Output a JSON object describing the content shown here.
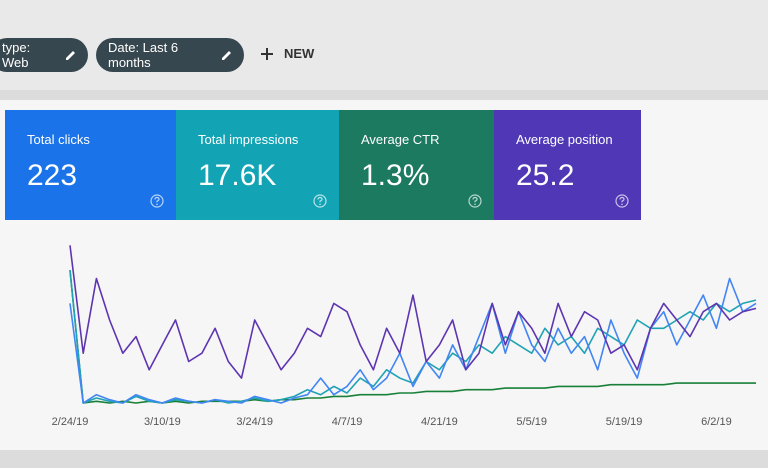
{
  "filters": [
    "type: Web",
    "Date: Last 6 months"
  ],
  "new_button": "NEW",
  "metrics": [
    {
      "label": "Total clicks",
      "value": "223"
    },
    {
      "label": "Total impressions",
      "value": "17.6K"
    },
    {
      "label": "Average CTR",
      "value": "1.3%"
    },
    {
      "label": "Average position",
      "value": "25.2"
    }
  ],
  "chart_data": {
    "type": "line",
    "categories": [
      "2/24/19",
      null,
      null,
      null,
      null,
      null,
      null,
      "3/10/19",
      null,
      null,
      null,
      null,
      null,
      null,
      "3/24/19",
      null,
      null,
      null,
      null,
      null,
      null,
      "4/7/19",
      null,
      null,
      null,
      null,
      null,
      null,
      "4/21/19",
      null,
      null,
      null,
      null,
      null,
      null,
      "5/5/19",
      null,
      null,
      null,
      null,
      null,
      null,
      "5/19/19",
      null,
      null,
      null,
      null,
      null,
      null,
      "6/2/19",
      null,
      null,
      null
    ],
    "ylim": [
      0,
      100
    ],
    "series": [
      {
        "color": "#5e35b1",
        "values": [
          95,
          30,
          75,
          50,
          30,
          40,
          20,
          35,
          50,
          25,
          30,
          45,
          25,
          15,
          50,
          35,
          20,
          30,
          45,
          40,
          60,
          55,
          35,
          20,
          45,
          30,
          65,
          25,
          35,
          50,
          20,
          30,
          60,
          35,
          55,
          45,
          30,
          60,
          40,
          55,
          50,
          30,
          35,
          20,
          45,
          60,
          50,
          40,
          55,
          60,
          50,
          55,
          57
        ]
      },
      {
        "color": "#4285f4",
        "values": [
          60,
          0,
          5,
          2,
          0,
          5,
          2,
          0,
          3,
          1,
          0,
          2,
          1,
          0,
          4,
          2,
          0,
          3,
          5,
          15,
          5,
          10,
          20,
          8,
          15,
          30,
          10,
          25,
          15,
          35,
          20,
          40,
          60,
          30,
          55,
          35,
          25,
          45,
          30,
          40,
          20,
          50,
          30,
          15,
          45,
          55,
          35,
          50,
          65,
          45,
          75,
          55,
          60
        ]
      },
      {
        "color": "#1fa3b3",
        "values": [
          80,
          0,
          3,
          1,
          0,
          4,
          1,
          0,
          2,
          1,
          0,
          2,
          0,
          1,
          3,
          1,
          2,
          4,
          8,
          5,
          10,
          6,
          15,
          10,
          20,
          15,
          12,
          25,
          20,
          30,
          25,
          35,
          30,
          40,
          35,
          30,
          45,
          35,
          40,
          30,
          45,
          40,
          35,
          50,
          45,
          45,
          50,
          55,
          50,
          60,
          55,
          60,
          62
        ]
      },
      {
        "color": "#188038",
        "values": [
          80,
          0,
          1,
          0,
          1,
          0,
          1,
          0,
          1,
          0,
          1,
          1,
          1,
          1,
          2,
          1,
          2,
          2,
          3,
          3,
          4,
          4,
          5,
          5,
          5,
          6,
          6,
          7,
          7,
          7,
          8,
          8,
          8,
          9,
          9,
          9,
          9,
          10,
          10,
          10,
          10,
          11,
          11,
          11,
          11,
          11,
          12,
          12,
          12,
          12,
          12,
          12,
          12
        ]
      }
    ]
  }
}
